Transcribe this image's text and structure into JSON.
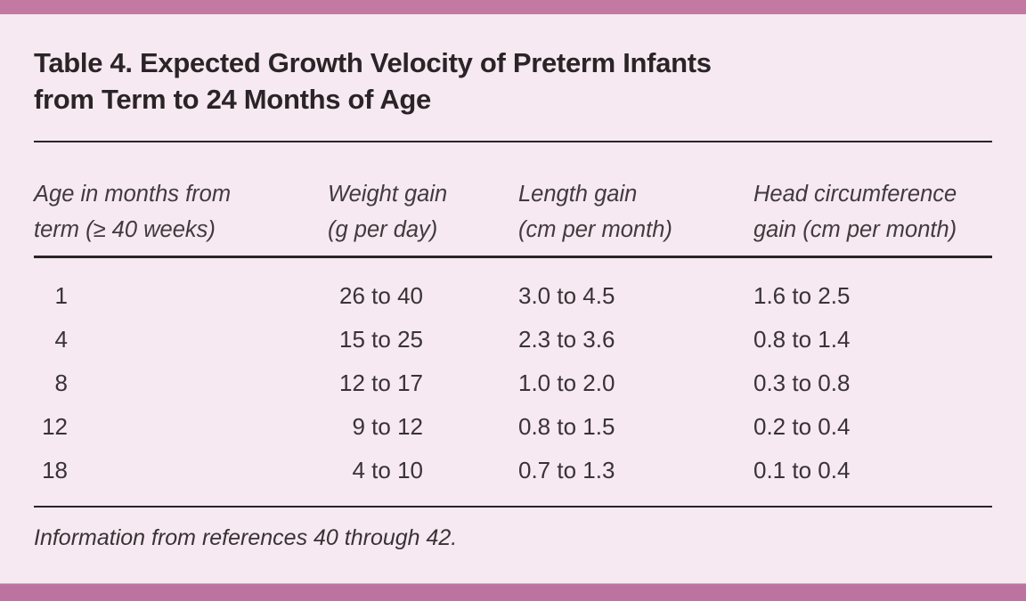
{
  "figure": {
    "title_lines": [
      "Table 4. Expected Growth Velocity of Preterm Infants",
      "from Term to 24 Months of Age"
    ],
    "columns": [
      {
        "line1": "Age in months from",
        "line2": "term (≥ 40 weeks)"
      },
      {
        "line1": "Weight gain",
        "line2": "(g per day)"
      },
      {
        "line1": "Length gain",
        "line2": "(cm per month)"
      },
      {
        "line1": "Head circumference",
        "line2": "gain (cm per month)"
      }
    ],
    "rows": [
      {
        "age": "1",
        "weight": "26 to 40",
        "length": "3.0 to 4.5",
        "head": "1.6 to 2.5"
      },
      {
        "age": "4",
        "weight": "15 to 25",
        "length": "2.3 to 3.6",
        "head": "0.8 to 1.4"
      },
      {
        "age": "8",
        "weight": "12 to 17",
        "length": "1.0 to 2.0",
        "head": "0.3 to 0.8"
      },
      {
        "age": "12",
        "weight": "9 to 12",
        "length": "0.8 to 1.5",
        "head": "0.2 to 0.4"
      },
      {
        "age": "18",
        "weight": "4 to 10",
        "length": "0.7 to 1.3",
        "head": "0.1 to 0.4"
      }
    ],
    "footnote": "Information from references 40 through 42."
  },
  "colors": {
    "top_bar": "#c479a3",
    "bottom_bar": "#bd739f",
    "background": "#f6e9f1",
    "rule": "#2a2427",
    "title_text": "#2a2427",
    "header_text": "#413a3e",
    "body_text": "#393236"
  },
  "chart_data": {
    "type": "table",
    "title": "Table 4. Expected Growth Velocity of Preterm Infants from Term to 24 Months of Age",
    "columns": [
      "Age in months from term (≥ 40 weeks)",
      "Weight gain (g per day)",
      "Length gain (cm per month)",
      "Head circumference gain (cm per month)"
    ],
    "rows": [
      [
        "1",
        "26 to 40",
        "3.0 to 4.5",
        "1.6 to 2.5"
      ],
      [
        "4",
        "15 to 25",
        "2.3 to 3.6",
        "0.8 to 1.4"
      ],
      [
        "8",
        "12 to 17",
        "1.0 to 2.0",
        "0.3 to 0.8"
      ],
      [
        "12",
        "9 to 12",
        "0.8 to 1.5",
        "0.2 to 0.4"
      ],
      [
        "18",
        "4 to 10",
        "0.7 to 1.3",
        "0.1 to 0.4"
      ]
    ],
    "footnote": "Information from references 40 through 42."
  }
}
